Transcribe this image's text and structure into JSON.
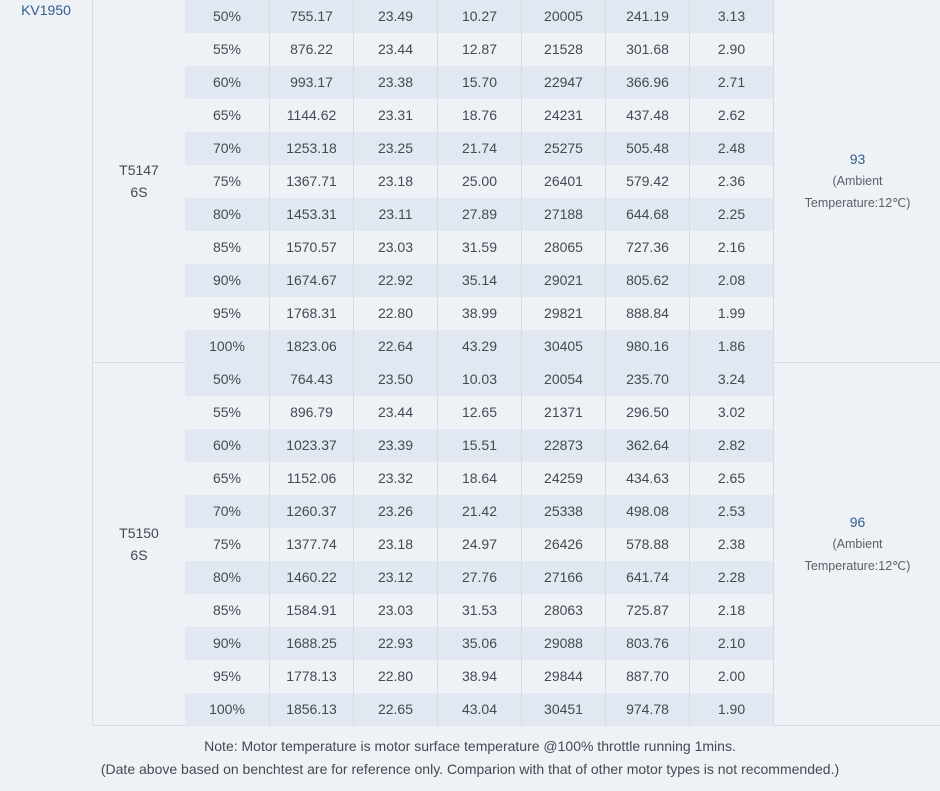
{
  "motor": "KV1950",
  "groups": [
    {
      "prop_line1": "T5147",
      "prop_line2": "6S",
      "temp_value": "93",
      "temp_note_line1": "(Ambient",
      "temp_note_line2": "Temperature:12℃)",
      "rows": [
        [
          "50%",
          "755.17",
          "23.49",
          "10.27",
          "20005",
          "241.19",
          "3.13"
        ],
        [
          "55%",
          "876.22",
          "23.44",
          "12.87",
          "21528",
          "301.68",
          "2.90"
        ],
        [
          "60%",
          "993.17",
          "23.38",
          "15.70",
          "22947",
          "366.96",
          "2.71"
        ],
        [
          "65%",
          "1144.62",
          "23.31",
          "18.76",
          "24231",
          "437.48",
          "2.62"
        ],
        [
          "70%",
          "1253.18",
          "23.25",
          "21.74",
          "25275",
          "505.48",
          "2.48"
        ],
        [
          "75%",
          "1367.71",
          "23.18",
          "25.00",
          "26401",
          "579.42",
          "2.36"
        ],
        [
          "80%",
          "1453.31",
          "23.11",
          "27.89",
          "27188",
          "644.68",
          "2.25"
        ],
        [
          "85%",
          "1570.57",
          "23.03",
          "31.59",
          "28065",
          "727.36",
          "2.16"
        ],
        [
          "90%",
          "1674.67",
          "22.92",
          "35.14",
          "29021",
          "805.62",
          "2.08"
        ],
        [
          "95%",
          "1768.31",
          "22.80",
          "38.99",
          "29821",
          "888.84",
          "1.99"
        ],
        [
          "100%",
          "1823.06",
          "22.64",
          "43.29",
          "30405",
          "980.16",
          "1.86"
        ]
      ]
    },
    {
      "prop_line1": "T5150",
      "prop_line2": "6S",
      "temp_value": "96",
      "temp_note_line1": "(Ambient",
      "temp_note_line2": "Temperature:12℃)",
      "rows": [
        [
          "50%",
          "764.43",
          "23.50",
          "10.03",
          "20054",
          "235.70",
          "3.24"
        ],
        [
          "55%",
          "896.79",
          "23.44",
          "12.65",
          "21371",
          "296.50",
          "3.02"
        ],
        [
          "60%",
          "1023.37",
          "23.39",
          "15.51",
          "22873",
          "362.64",
          "2.82"
        ],
        [
          "65%",
          "1152.06",
          "23.32",
          "18.64",
          "24259",
          "434.63",
          "2.65"
        ],
        [
          "70%",
          "1260.37",
          "23.26",
          "21.42",
          "25338",
          "498.08",
          "2.53"
        ],
        [
          "75%",
          "1377.74",
          "23.18",
          "24.97",
          "26426",
          "578.88",
          "2.38"
        ],
        [
          "80%",
          "1460.22",
          "23.12",
          "27.76",
          "27166",
          "641.74",
          "2.28"
        ],
        [
          "85%",
          "1584.91",
          "23.03",
          "31.53",
          "28063",
          "725.87",
          "2.18"
        ],
        [
          "90%",
          "1688.25",
          "22.93",
          "35.06",
          "29088",
          "803.76",
          "2.10"
        ],
        [
          "95%",
          "1778.13",
          "22.80",
          "38.94",
          "29844",
          "887.70",
          "2.00"
        ],
        [
          "100%",
          "1856.13",
          "22.65",
          "43.04",
          "30451",
          "974.78",
          "1.90"
        ]
      ]
    }
  ],
  "footer": {
    "line1": "Note: Motor temperature is motor surface temperature @100% throttle running 1mins.",
    "line2": "(Date above based on benchtest are for reference only. Comparion with that of other motor types is not recommended.)"
  },
  "colors": {
    "background": "#eef1f6",
    "row_alt": "#e2e8f1",
    "accent_text": "#2e5f8f",
    "border": "#d6dbe3"
  }
}
